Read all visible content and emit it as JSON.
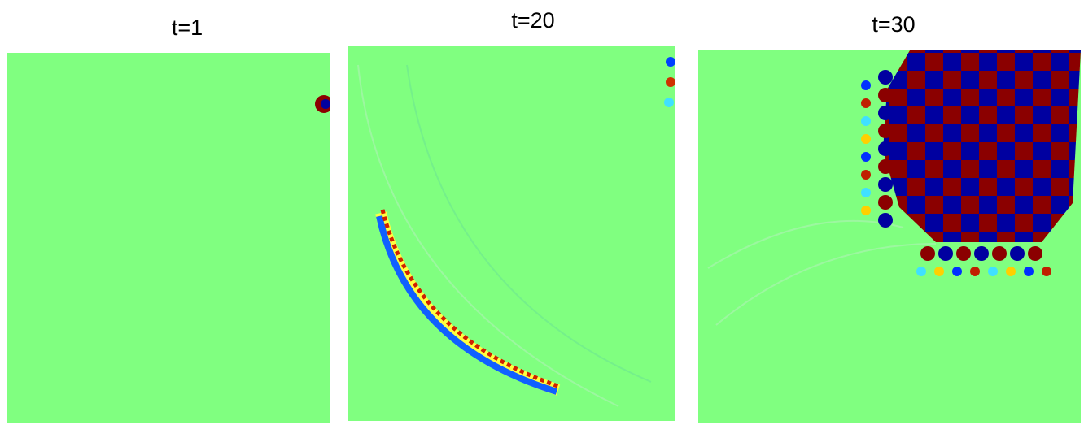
{
  "panels": [
    {
      "title": "t=1"
    },
    {
      "title": "t=20"
    },
    {
      "title": "t=30"
    }
  ]
}
